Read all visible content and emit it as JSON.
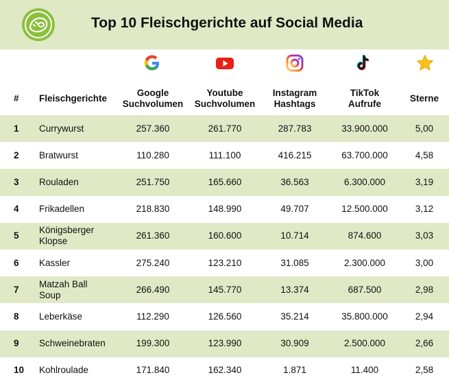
{
  "header": {
    "title": "Top 10 Fleischgerichte auf Social Media",
    "logo_icon": "green-meat-logo-icon",
    "bg_color": "#dfe9c6",
    "logo_color": "#8bbf3c"
  },
  "platform_icons": [
    "google-icon",
    "youtube-icon",
    "instagram-icon",
    "tiktok-icon",
    "star-icon"
  ],
  "columns": {
    "num": "#",
    "dish": "Fleischgerichte",
    "google_1": "Google",
    "google_2": "Suchvolumen",
    "youtube_1": "Youtube",
    "youtube_2": "Suchvolumen",
    "instagram_1": "Instagram",
    "instagram_2": "Hashtags",
    "tiktok_1": "TikTok",
    "tiktok_2": "Aufrufe",
    "stars": "Sterne"
  },
  "rows": [
    {
      "num": "1",
      "dish": "Currywurst",
      "google": "257.360",
      "youtube": "261.770",
      "instagram": "287.783",
      "tiktok": "33.900.000",
      "stars": "5,00"
    },
    {
      "num": "2",
      "dish": "Bratwurst",
      "google": "110.280",
      "youtube": "111.100",
      "instagram": "416.215",
      "tiktok": "63.700.000",
      "stars": "4,58"
    },
    {
      "num": "3",
      "dish": "Rouladen",
      "google": "251.750",
      "youtube": "165.660",
      "instagram": "36.563",
      "tiktok": "6.300.000",
      "stars": "3,19"
    },
    {
      "num": "4",
      "dish": "Frikadellen",
      "google": "218.830",
      "youtube": "148.990",
      "instagram": "49.707",
      "tiktok": "12.500.000",
      "stars": "3,12"
    },
    {
      "num": "5",
      "dish_1": "Königsberger",
      "dish_2": "Klopse",
      "google": "261.360",
      "youtube": "160.600",
      "instagram": "10.714",
      "tiktok": "874.600",
      "stars": "3,03"
    },
    {
      "num": "6",
      "dish": "Kassler",
      "google": "275.240",
      "youtube": "123.210",
      "instagram": "31.085",
      "tiktok": "2.300.000",
      "stars": "3,00"
    },
    {
      "num": "7",
      "dish_1": "Matzah Ball",
      "dish_2": "Soup",
      "google": "266.490",
      "youtube": "145.770",
      "instagram": "13.374",
      "tiktok": "687.500",
      "stars": "2,98"
    },
    {
      "num": "8",
      "dish": "Leberkäse",
      "google": "112.290",
      "youtube": "126.560",
      "instagram": "35.214",
      "tiktok": "35.800.000",
      "stars": "2,94"
    },
    {
      "num": "9",
      "dish": "Schweinebraten",
      "google": "199.300",
      "youtube": "123.990",
      "instagram": "30.909",
      "tiktok": "2.500.000",
      "stars": "2,66"
    },
    {
      "num": "10",
      "dish": "Kohlroulade",
      "google": "171.840",
      "youtube": "162.340",
      "instagram": "1.871",
      "tiktok": "11.400",
      "stars": "2,58"
    }
  ]
}
